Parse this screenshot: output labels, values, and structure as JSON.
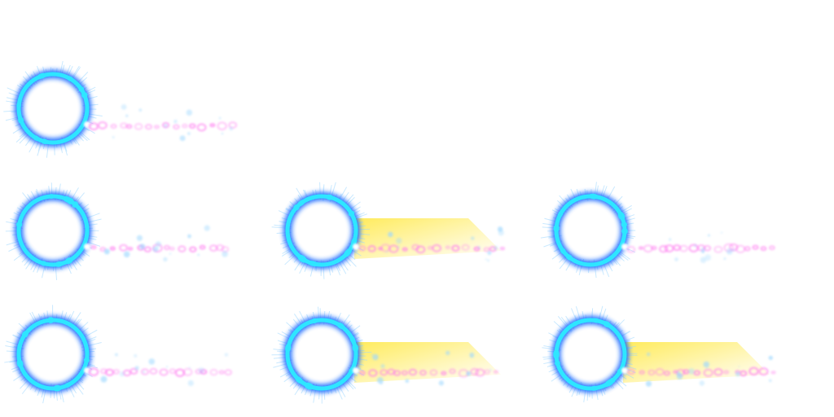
{
  "sprite_sheet": {
    "rows": [
      {
        "frames": [
          {
            "beam": false
          }
        ]
      },
      {
        "frames": [
          {
            "beam": false
          },
          {
            "beam": true
          },
          {
            "beam": false
          }
        ]
      },
      {
        "frames": [
          {
            "beam": false
          },
          {
            "beam": true
          },
          {
            "beam": true
          }
        ]
      }
    ],
    "colors": {
      "ring_outer": "#1a6cff",
      "ring_core": "#2ee6ff",
      "ring_glow": "#9fd8ff",
      "spark": "#ff7cf0",
      "spark_core": "#ffffff",
      "beam": "#ffe94a"
    }
  }
}
